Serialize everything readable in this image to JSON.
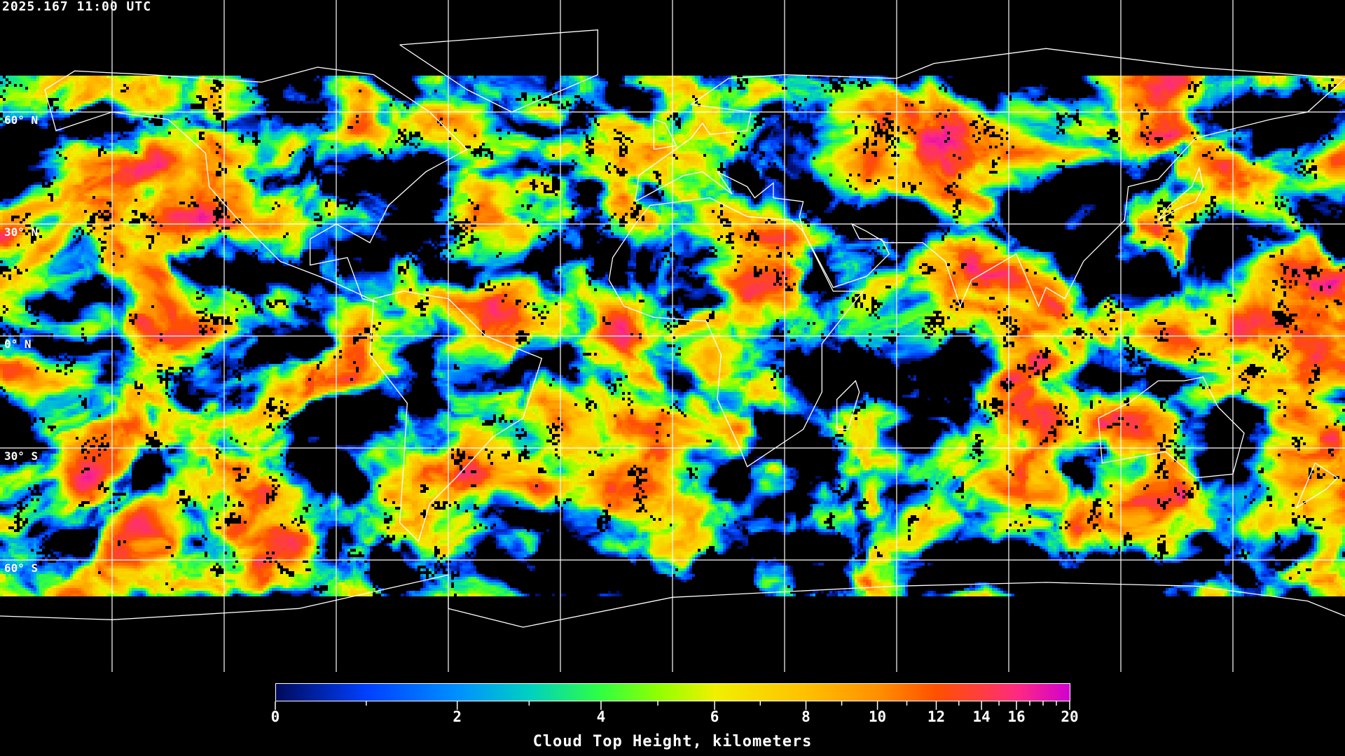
{
  "header": {
    "timestamp": "2025.167 11:00 UTC"
  },
  "map": {
    "projection": "equirectangular",
    "lat_labels": [
      "60° N",
      "30° N",
      "0° N",
      "30° S",
      "60° S"
    ],
    "grid_color": "#ffffff",
    "coastline_color": "#ffffff",
    "no_data_color": "#000000"
  },
  "colorbar": {
    "title": "Cloud Top Height, kilometers",
    "range": [
      0,
      20
    ],
    "major_ticks": [
      "0",
      "2",
      "4",
      "6",
      "8",
      "10",
      "12",
      "14",
      "16",
      "20"
    ],
    "minor_ticks": [
      1,
      3,
      5,
      7,
      9,
      11,
      13,
      15,
      17,
      18,
      19
    ],
    "colors": [
      {
        "value": 0,
        "color": "#000a5a"
      },
      {
        "value": 1,
        "color": "#0040ff"
      },
      {
        "value": 2,
        "color": "#0090ff"
      },
      {
        "value": 3,
        "color": "#00d0c0"
      },
      {
        "value": 4,
        "color": "#30ff40"
      },
      {
        "value": 5,
        "color": "#90ff00"
      },
      {
        "value": 6,
        "color": "#f0f000"
      },
      {
        "value": 8,
        "color": "#ffc000"
      },
      {
        "value": 10,
        "color": "#ff9000"
      },
      {
        "value": 12,
        "color": "#ff5000"
      },
      {
        "value": 16,
        "color": "#ff2a80"
      },
      {
        "value": 20,
        "color": "#d000d0"
      }
    ]
  }
}
